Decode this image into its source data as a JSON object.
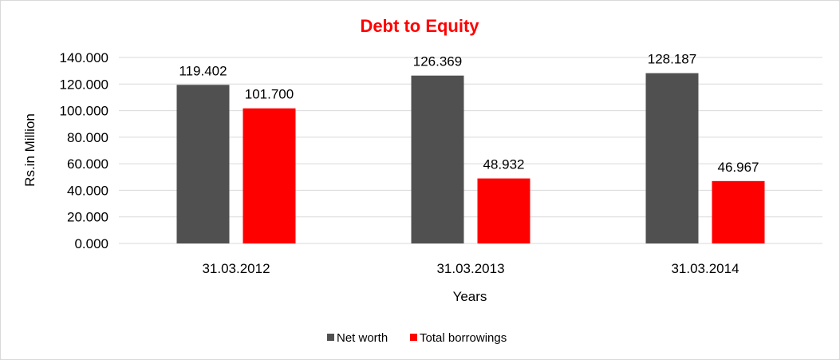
{
  "chart_data": {
    "type": "bar",
    "title": "Debt to Equity",
    "xlabel": "Years",
    "ylabel": "Rs.in Million",
    "categories": [
      "31.03.2012",
      "31.03.2013",
      "31.03.2014"
    ],
    "series": [
      {
        "name": "Net worth",
        "values": [
          119.402,
          126.369,
          128.187
        ],
        "color": "#505050"
      },
      {
        "name": "Total borrowings",
        "values": [
          101.7,
          48.932,
          46.967
        ],
        "color": "#ff0000"
      }
    ],
    "data_labels": [
      [
        "119.402",
        "126.369",
        "128.187"
      ],
      [
        "101.700",
        "48.932",
        "46.967"
      ]
    ],
    "ylim": [
      0,
      140
    ],
    "yticks": [
      0,
      20,
      40,
      60,
      80,
      100,
      120,
      140
    ],
    "ytick_labels": [
      "0.000",
      "20.000",
      "40.000",
      "60.000",
      "80.000",
      "100.000",
      "120.000",
      "140.000"
    ],
    "grid": true,
    "legend_position": "bottom",
    "title_color": "#ff0000",
    "grid_color": "#d9d9d9"
  }
}
